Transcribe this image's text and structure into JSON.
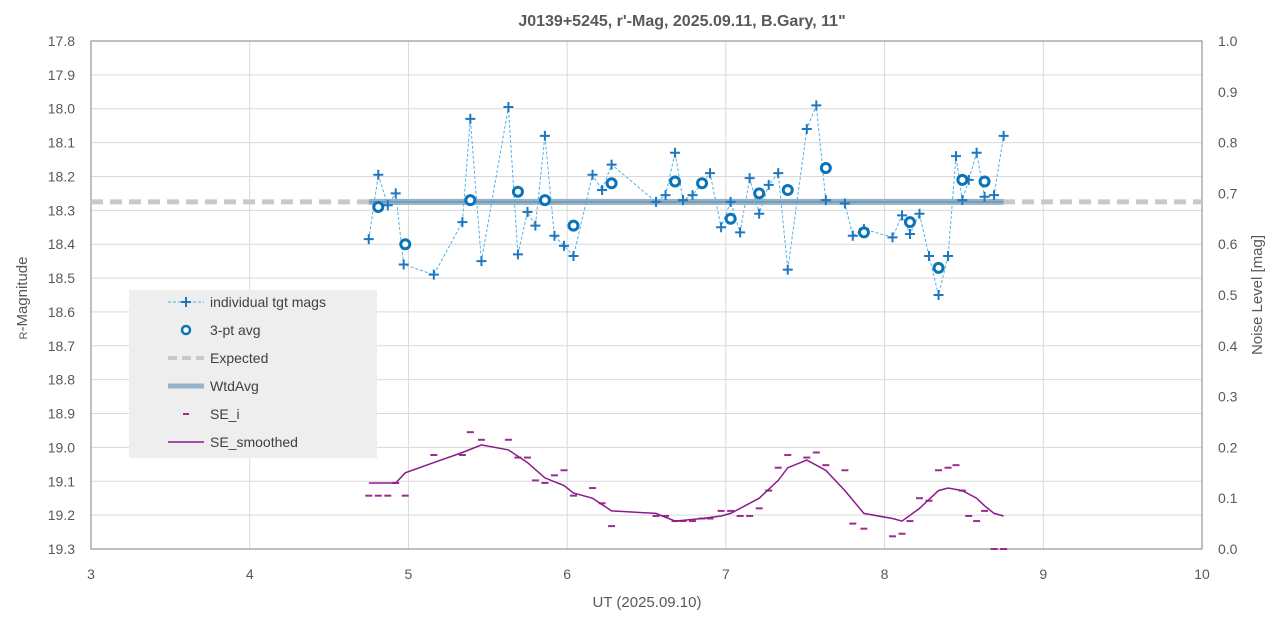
{
  "chart_data": {
    "type": "line",
    "title": "J0139+5245, r'-Mag, 2025.09.11, B.Gary, 11\"",
    "xlabel": "UT (2025.09.10)",
    "ylabel_prefix": "R",
    "ylabel_rest": "-Magnitude",
    "y2label": "Noise Level [mag]",
    "xlim": [
      3,
      10
    ],
    "ylim": [
      17.8,
      19.3
    ],
    "y_inverted": true,
    "y2lim": [
      0.0,
      1.0
    ],
    "xticks": [
      "3",
      "4",
      "5",
      "6",
      "7",
      "8",
      "9",
      "10"
    ],
    "yticks": [
      "17.8",
      "17.9",
      "18.0",
      "18.1",
      "18.2",
      "18.3",
      "18.4",
      "18.5",
      "18.6",
      "18.7",
      "18.8",
      "18.9",
      "19.0",
      "19.1",
      "19.2",
      "19.3"
    ],
    "y2ticks": [
      "1.0",
      "0.9",
      "0.8",
      "0.7",
      "0.6",
      "0.5",
      "0.4",
      "0.3",
      "0.2",
      "0.1",
      "0.0"
    ],
    "grid": true,
    "legend_position": "left",
    "series": [
      {
        "name": "individual tgt mags",
        "color": "#1F77C0",
        "marker": "plus",
        "line": "dashed",
        "x": [
          4.75,
          4.81,
          4.87,
          4.92,
          4.97,
          5.16,
          5.34,
          5.39,
          5.46,
          5.63,
          5.69,
          5.75,
          5.8,
          5.86,
          5.92,
          5.98,
          6.04,
          6.16,
          6.22,
          6.28,
          6.56,
          6.62,
          6.68,
          6.73,
          6.79,
          6.85,
          6.9,
          6.97,
          7.03,
          7.09,
          7.15,
          7.21,
          7.27,
          7.33,
          7.39,
          7.51,
          7.57,
          7.63,
          7.75,
          7.8,
          7.87,
          8.05,
          8.11,
          8.16,
          8.22,
          8.28,
          8.34,
          8.4,
          8.45,
          8.49,
          8.53,
          8.58,
          8.63,
          8.69,
          8.75
        ],
        "y": [
          18.385,
          18.195,
          18.285,
          18.25,
          18.46,
          18.49,
          18.335,
          18.03,
          18.45,
          17.995,
          18.43,
          18.305,
          18.345,
          18.08,
          18.375,
          18.405,
          18.435,
          18.195,
          18.24,
          18.165,
          18.275,
          18.255,
          18.13,
          18.27,
          18.255,
          18.22,
          18.19,
          18.35,
          18.275,
          18.365,
          18.205,
          18.31,
          18.225,
          18.19,
          18.475,
          18.06,
          17.99,
          18.27,
          18.28,
          18.375,
          18.355,
          18.38,
          18.315,
          18.37,
          18.31,
          18.435,
          18.55,
          18.435,
          18.14,
          18.27,
          18.21,
          18.13,
          18.26,
          18.255,
          18.08
        ]
      },
      {
        "name": "3-pt avg",
        "color": "#0B74B8",
        "marker": "circle",
        "x": [
          4.81,
          4.98,
          5.39,
          5.69,
          5.86,
          6.04,
          6.28,
          6.68,
          6.85,
          7.03,
          7.21,
          7.39,
          7.63,
          7.87,
          8.16,
          8.34,
          8.49,
          8.63
        ],
        "y": [
          18.29,
          18.4,
          18.27,
          18.245,
          18.27,
          18.345,
          18.22,
          18.215,
          18.22,
          18.325,
          18.25,
          18.24,
          18.175,
          18.365,
          18.335,
          18.47,
          18.21,
          18.215
        ]
      },
      {
        "name": "Expected",
        "color": "#C8C8C8",
        "line": "dashed",
        "x": [
          3,
          10
        ],
        "y": [
          18.275,
          18.275
        ]
      },
      {
        "name": "WtdAvg",
        "color": "#95B3C8",
        "line": "thick",
        "x": [
          4.75,
          8.75
        ],
        "y": [
          18.275,
          18.275
        ]
      },
      {
        "name": "SE_i",
        "color": "#9B2D91",
        "marker": "dash",
        "axis": "secondary",
        "x": [
          4.75,
          4.81,
          4.87,
          4.92,
          4.98,
          5.16,
          5.34,
          5.39,
          5.46,
          5.63,
          5.69,
          5.75,
          5.8,
          5.86,
          5.92,
          5.98,
          6.04,
          6.16,
          6.22,
          6.28,
          6.56,
          6.62,
          6.68,
          6.73,
          6.79,
          6.85,
          6.9,
          6.97,
          7.03,
          7.09,
          7.15,
          7.21,
          7.27,
          7.33,
          7.39,
          7.51,
          7.57,
          7.63,
          7.75,
          7.8,
          7.87,
          8.05,
          8.11,
          8.16,
          8.22,
          8.28,
          8.34,
          8.4,
          8.45,
          8.49,
          8.53,
          8.58,
          8.63,
          8.69,
          8.75
        ],
        "y": [
          0.105,
          0.105,
          0.105,
          0.13,
          0.105,
          0.185,
          0.185,
          0.23,
          0.215,
          0.215,
          0.18,
          0.18,
          0.135,
          0.13,
          0.145,
          0.155,
          0.105,
          0.12,
          0.09,
          0.045,
          0.065,
          0.065,
          0.055,
          0.055,
          0.055,
          0.06,
          0.06,
          0.075,
          0.075,
          0.065,
          0.065,
          0.08,
          0.115,
          0.16,
          0.185,
          0.18,
          0.19,
          0.165,
          0.155,
          0.05,
          0.04,
          0.025,
          0.03,
          0.055,
          0.1,
          0.095,
          0.155,
          0.16,
          0.165,
          0.115,
          0.065,
          0.055,
          0.075,
          0.0,
          0.0
        ]
      },
      {
        "name": "SE_smoothed",
        "color": "#8B1A89",
        "line": "solid",
        "axis": "secondary",
        "x": [
          4.75,
          4.92,
          4.98,
          5.16,
          5.34,
          5.46,
          5.63,
          5.75,
          5.86,
          5.98,
          6.04,
          6.16,
          6.28,
          6.56,
          6.68,
          6.85,
          6.97,
          7.03,
          7.09,
          7.21,
          7.33,
          7.39,
          7.51,
          7.63,
          7.75,
          7.87,
          8.05,
          8.11,
          8.22,
          8.34,
          8.4,
          8.49,
          8.58,
          8.63,
          8.69,
          8.75
        ],
        "y": [
          0.13,
          0.13,
          0.15,
          0.17,
          0.19,
          0.205,
          0.195,
          0.17,
          0.14,
          0.125,
          0.11,
          0.1,
          0.075,
          0.07,
          0.055,
          0.06,
          0.065,
          0.07,
          0.08,
          0.1,
          0.135,
          0.16,
          0.175,
          0.155,
          0.115,
          0.07,
          0.06,
          0.055,
          0.08,
          0.115,
          0.12,
          0.115,
          0.1,
          0.085,
          0.07,
          0.065
        ]
      }
    ]
  }
}
